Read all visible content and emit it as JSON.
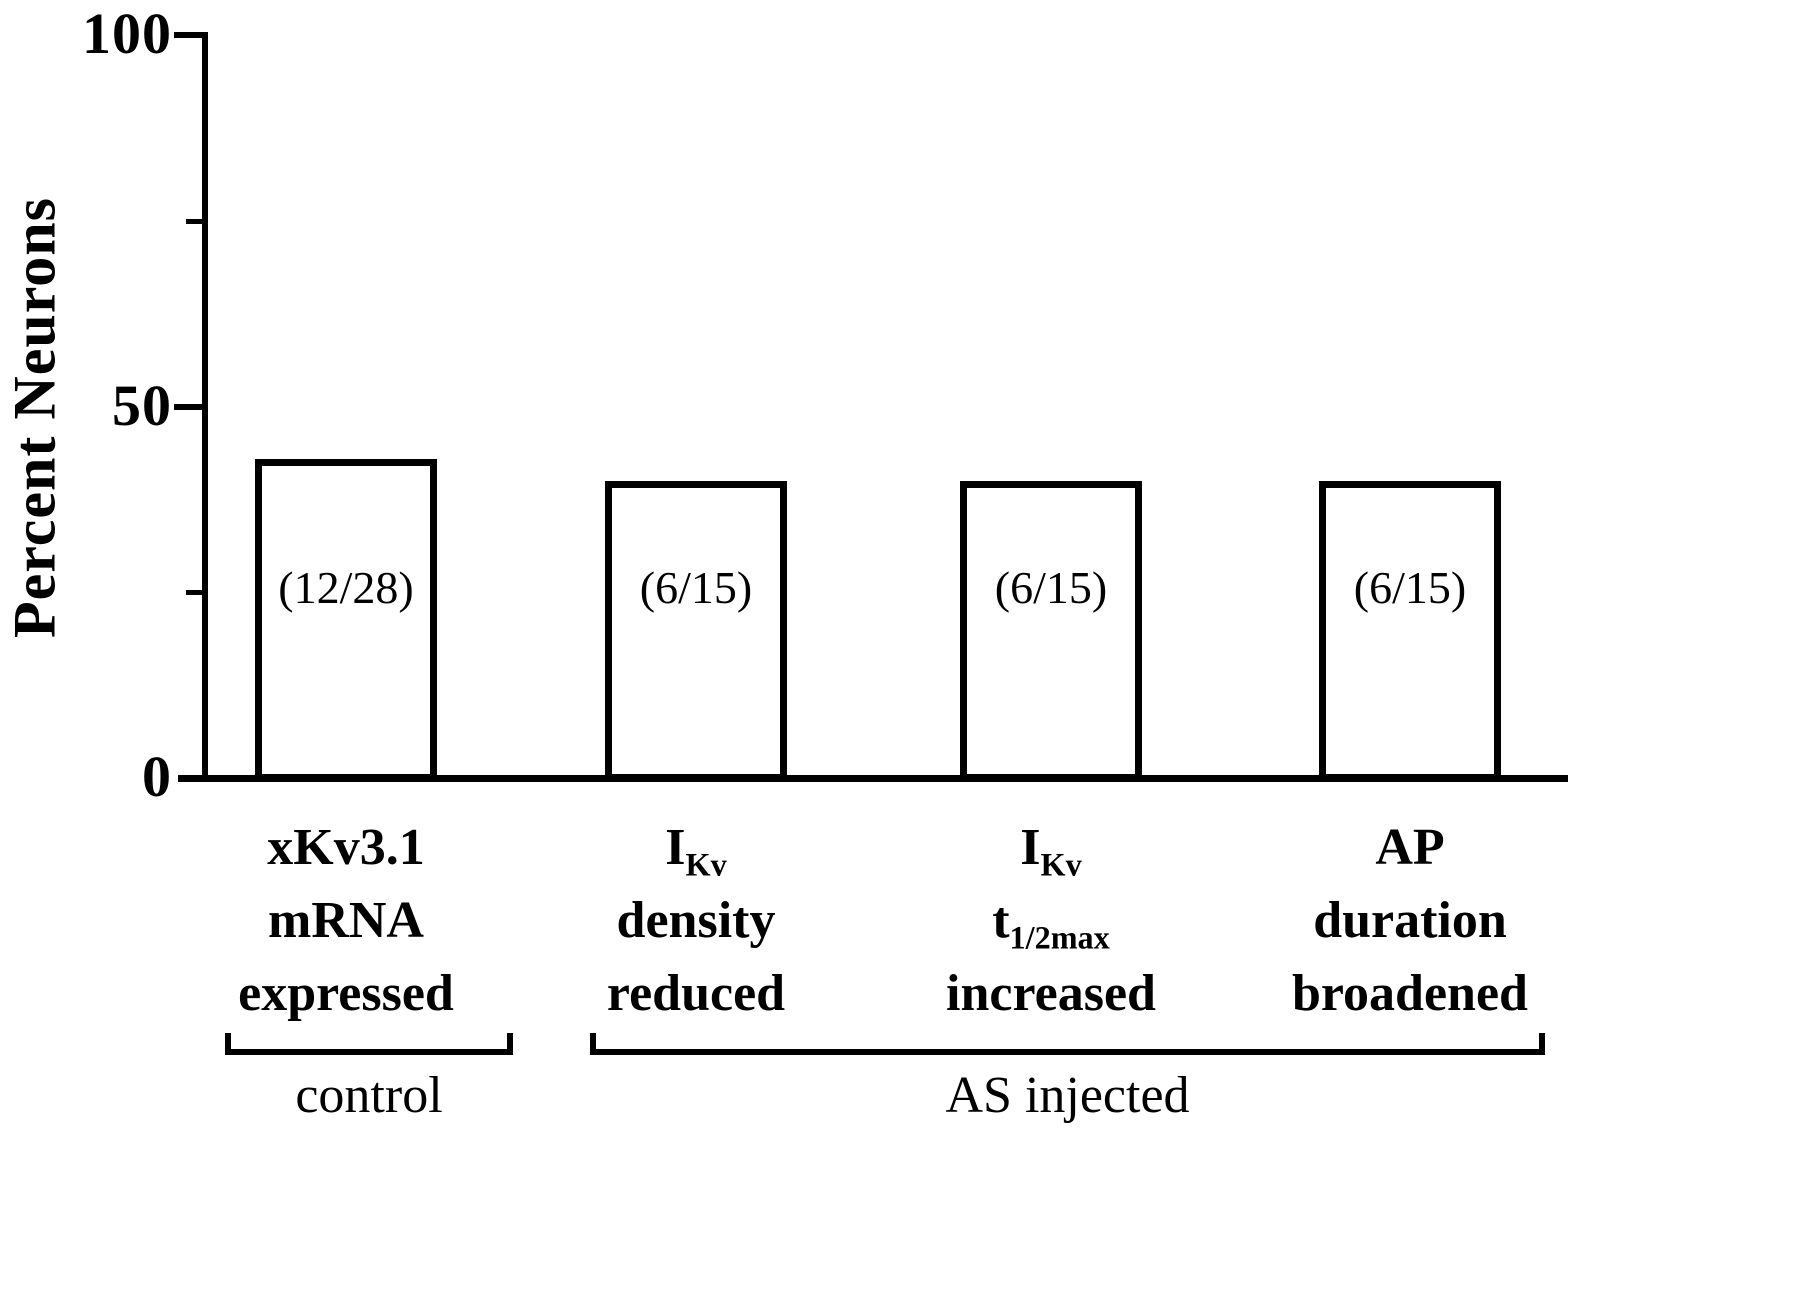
{
  "chart_data": {
    "type": "bar",
    "title": "",
    "ylabel": "Percent Neurons",
    "xlabel": "",
    "ylim": [
      0,
      100
    ],
    "yticks": [
      0,
      50,
      100
    ],
    "minor_yticks": [
      25,
      75
    ],
    "values": [
      42.9,
      40,
      40,
      40
    ],
    "bar_labels": [
      "(12/28)",
      "(6/15)",
      "(6/15)",
      "(6/15)"
    ],
    "categories": [
      {
        "name": "xKv3.1 mRNA expressed",
        "lines": [
          [
            {
              "t": "xKv3.1"
            }
          ],
          [
            {
              "t": "mRNA"
            }
          ],
          [
            {
              "t": "expressed"
            }
          ]
        ]
      },
      {
        "name": "IKv density reduced",
        "lines": [
          [
            {
              "t": "I"
            },
            {
              "t": "Kv",
              "sub": true
            }
          ],
          [
            {
              "t": "density"
            }
          ],
          [
            {
              "t": "reduced"
            }
          ]
        ]
      },
      {
        "name": "IKv t1/2max increased",
        "lines": [
          [
            {
              "t": "I"
            },
            {
              "t": "Kv",
              "sub": true
            }
          ],
          [
            {
              "t": "t"
            },
            {
              "t": "1/2max",
              "sub": true
            }
          ],
          [
            {
              "t": "increased"
            }
          ]
        ]
      },
      {
        "name": "AP duration broadened",
        "lines": [
          [
            {
              "t": "AP"
            }
          ],
          [
            {
              "t": "duration"
            }
          ],
          [
            {
              "t": "broadened"
            }
          ]
        ]
      }
    ],
    "groups": [
      {
        "label": "control",
        "bar_indexes": [
          0
        ]
      },
      {
        "label": "AS injected",
        "bar_indexes": [
          1,
          2,
          3
        ]
      }
    ],
    "bar_fill": "#ffffff",
    "bar_border": "#000000",
    "axis_color": "#000000",
    "grid": false,
    "legend": false
  }
}
